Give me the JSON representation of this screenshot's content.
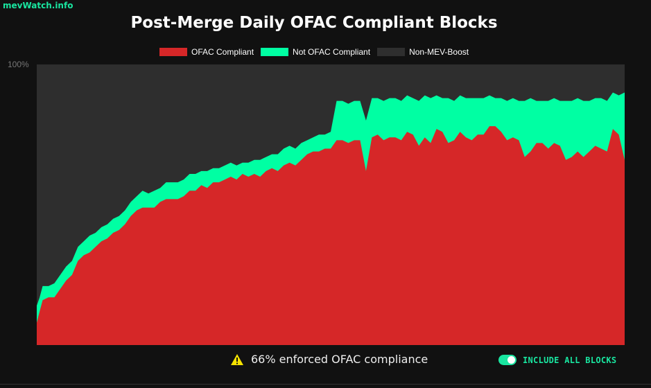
{
  "brand": "mevWatch.info",
  "title": "Post-Merge Daily OFAC Compliant Blocks",
  "legend": [
    {
      "label": "OFAC Compliant",
      "color": "#d62728"
    },
    {
      "label": "Not OFAC Compliant",
      "color": "#00ffa3"
    },
    {
      "label": "Non-MEV-Boost",
      "color": "#2e2e2e"
    }
  ],
  "y_axis_label": "100%",
  "footer": {
    "warning_text": "66% enforced OFAC compliance",
    "toggle_label": "INCLUDE ALL BLOCKS",
    "toggle_on": true
  },
  "colors": {
    "accent": "#19e6a0",
    "ofac": "#d62728",
    "not_ofac": "#00ffa3",
    "non_mev": "#2e2e2e",
    "warning": "#f5e200"
  },
  "chart_data": {
    "type": "area",
    "stacked": true,
    "title": "Post-Merge Daily OFAC Compliant Blocks",
    "xlabel": "",
    "ylabel": "",
    "ylim": [
      0,
      100
    ],
    "y_tick_labels": [
      "100%"
    ],
    "legend_position": "top",
    "grid": false,
    "x_index_note": "daily samples post-merge, x positions normalized 0..1",
    "series": [
      {
        "name": "OFAC Compliant",
        "color": "#d62728",
        "x": [
          0,
          0.005,
          0.01,
          0.02,
          0.03,
          0.04,
          0.05,
          0.06,
          0.07,
          0.08,
          0.09,
          0.1,
          0.11,
          0.12,
          0.13,
          0.14,
          0.15,
          0.16,
          0.17,
          0.18,
          0.19,
          0.2,
          0.21,
          0.22,
          0.23,
          0.24,
          0.25,
          0.26,
          0.27,
          0.28,
          0.29,
          0.3,
          0.31,
          0.32,
          0.33,
          0.34,
          0.35,
          0.36,
          0.37,
          0.38,
          0.39,
          0.4,
          0.41,
          0.42,
          0.43,
          0.44,
          0.45,
          0.46,
          0.47,
          0.48,
          0.49,
          0.5,
          0.51,
          0.52,
          0.53,
          0.54,
          0.55,
          0.56,
          0.57,
          0.58,
          0.59,
          0.6,
          0.61,
          0.62,
          0.63,
          0.64,
          0.65,
          0.66,
          0.67,
          0.68,
          0.69,
          0.7,
          0.71,
          0.72,
          0.73,
          0.74,
          0.75,
          0.76,
          0.77,
          0.78,
          0.79,
          0.8,
          0.81,
          0.82,
          0.83,
          0.84,
          0.85,
          0.86,
          0.87,
          0.88,
          0.89,
          0.9,
          0.91,
          0.92,
          0.93,
          0.94,
          0.95,
          0.96,
          0.97,
          0.98,
          0.99,
          1.0
        ],
        "values": [
          8,
          12,
          16,
          17,
          17,
          20,
          23,
          25,
          30,
          32,
          33,
          35,
          37,
          38,
          40,
          41,
          43,
          46,
          48,
          49,
          49,
          49,
          51,
          52,
          52,
          52,
          53,
          55,
          55,
          57,
          56,
          58,
          58,
          59,
          60,
          59,
          61,
          60,
          61,
          60,
          62,
          63,
          62,
          64,
          65,
          64,
          66,
          68,
          69,
          69,
          70,
          70,
          73,
          73,
          72,
          73,
          73,
          62,
          74,
          75,
          73,
          74,
          74,
          73,
          76,
          75,
          71,
          74,
          72,
          77,
          76,
          72,
          73,
          76,
          74,
          73,
          75,
          75,
          78,
          78,
          76,
          73,
          74,
          73,
          67,
          69,
          72,
          72,
          70,
          72,
          71,
          66,
          67,
          69,
          67,
          69,
          71,
          70,
          69,
          77,
          75,
          66
        ]
      },
      {
        "name": "Not OFAC Compliant",
        "color": "#00ffa3",
        "values_top": [
          14,
          17,
          21,
          21,
          22,
          25,
          28,
          30,
          35,
          37,
          39,
          40,
          42,
          43,
          45,
          46,
          48,
          51,
          53,
          55,
          54,
          55,
          56,
          58,
          58,
          58,
          59,
          61,
          61,
          62,
          62,
          63,
          63,
          64,
          65,
          64,
          65,
          65,
          66,
          66,
          67,
          68,
          68,
          70,
          71,
          70,
          72,
          73,
          74,
          75,
          75,
          76,
          87,
          87,
          86,
          87,
          87,
          80,
          88,
          88,
          87,
          88,
          88,
          87,
          89,
          88,
          87,
          89,
          88,
          89,
          88,
          88,
          87,
          89,
          88,
          88,
          88,
          88,
          89,
          88,
          88,
          87,
          88,
          87,
          87,
          88,
          87,
          87,
          87,
          88,
          87,
          87,
          87,
          88,
          87,
          87,
          88,
          88,
          87,
          90,
          89,
          90
        ]
      },
      {
        "name": "Non-MEV-Boost",
        "color": "#2e2e2e",
        "values_top": "100 (remainder)"
      }
    ]
  }
}
